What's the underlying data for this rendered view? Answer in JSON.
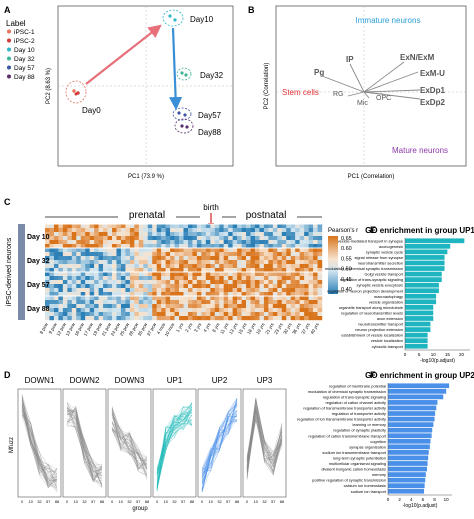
{
  "panel_letters": {
    "a": "A",
    "b": "B",
    "c": "C",
    "d": "D",
    "e": "E",
    "f": "F"
  },
  "panel_a": {
    "legend_title": "Label",
    "legend": [
      {
        "label": "iPSC-1",
        "color": "#e8735a"
      },
      {
        "label": "iPSC-2",
        "color": "#cf3a3a"
      },
      {
        "label": "Day 10",
        "color": "#2fb6c9"
      },
      {
        "label": "Day 32",
        "color": "#3cb59a"
      },
      {
        "label": "Day 57",
        "color": "#3b55a5"
      },
      {
        "label": "Day 88",
        "color": "#5a2f6b"
      }
    ],
    "xlabel": "PC1 (73.9 %)",
    "ylabel": "PC2 (8.63 %)",
    "points": {
      "day0": "Day0",
      "day10": "Day10",
      "day32": "Day32",
      "day57": "Day57",
      "day88": "Day88"
    }
  },
  "panel_b": {
    "xlabel": "PC1 (Correlation)",
    "ylabel": "PC2 (Correlation)",
    "top_label": "Immature neurons",
    "bottom_label": "Mature neurons",
    "left_label": "Stem cells",
    "vectors": [
      "IP",
      "Pg",
      "RG",
      "Mic",
      "OPC",
      "ExN/ExM",
      "ExM-U",
      "ExDp1",
      "ExDp2"
    ]
  },
  "panel_c": {
    "prenatal": "prenatal",
    "birth": "birth",
    "postnatal": "postnatal",
    "side_label": "iPSC-derived neurons",
    "rows": [
      "Day 10",
      "Day 32",
      "Day 57",
      "Day 88"
    ],
    "colorbar_title": "Pearson's r",
    "colorbar_ticks": [
      "0.65",
      "0.60",
      "0.55",
      "0.50",
      "0.45",
      "0.40"
    ],
    "xticks": [
      "8 pcw",
      "9 pcw",
      "12 pcw",
      "13 pcw",
      "16 pcw",
      "17 pcw",
      "19 pcw",
      "21 pcw",
      "24 pcw",
      "25 pcw",
      "26 pcw",
      "35 pcw",
      "37 pcw",
      "4 mos",
      "10 mos",
      "1 yrs",
      "2 yrs",
      "3 yrs",
      "4 yrs",
      "8 yrs",
      "11 yrs",
      "13 yrs",
      "15 yrs",
      "18 yrs",
      "19 yrs",
      "21 yrs",
      "23 yrs",
      "30 yrs",
      "36 yrs",
      "37 yrs",
      "40 yrs"
    ]
  },
  "panel_d": {
    "ylabel": "Mfuzz",
    "xlabel": "group",
    "clusters": [
      "DOWN1",
      "DOWN2",
      "DOWN3",
      "UP1",
      "UP2",
      "UP3"
    ],
    "xticks": [
      "0",
      "10",
      "32",
      "57",
      "88"
    ]
  },
  "chart_data": [
    {
      "type": "bar",
      "title": "GO enrichment in group UP1",
      "xlabel": "-log10(p.adjust)",
      "xticks": [
        "0",
        "5",
        "10",
        "15",
        "20"
      ],
      "xlim": [
        0,
        23
      ],
      "color": "#1fb5c0",
      "categories": [
        "vesicle-mediated transport in synapse",
        "axonogenesis",
        "synaptic vesicle cycle",
        "signal release from synapse",
        "neurotransmitter secretion",
        "modulation of chemical synaptic transmission",
        "Golgi vesicle transport",
        "regulation of trans-synaptic signaling",
        "synaptic vesicle exocytosis",
        "regulation of neuron projection development",
        "macroautophagy",
        "vesicle organization",
        "organelle transport along microtubule",
        "regulation of neurotransmitter levels",
        "axon extension",
        "neurotransmitter transport",
        "neuron projection extension",
        "establishment of vesicle localization",
        "vesicle localization",
        "cytosolic transport"
      ],
      "values": [
        21,
        16,
        15,
        14,
        14,
        14,
        13,
        13,
        12,
        12,
        11,
        11,
        10,
        10,
        10,
        9,
        9,
        8,
        8,
        8
      ]
    },
    {
      "type": "bar",
      "title": "GO enrichment in group UP2",
      "xlabel": "-log10(p.adjust)",
      "xticks": [
        "0",
        "2",
        "4",
        "6",
        "8",
        "10"
      ],
      "xlim": [
        0,
        11
      ],
      "color": "#4a8fe8",
      "categories": [
        "regulation of membrane potential",
        "modulation of chemical synaptic transmission",
        "regulation of trans-synaptic signaling",
        "regulation of cation channel activity",
        "regulation of transmembrane transporter activity",
        "regulation of transporter activity",
        "regulation of ion transmembrane transporter activity",
        "learning or memory",
        "regulation of synaptic plasticity",
        "regulation of cation transmembrane transport",
        "cognition",
        "synapse organization",
        "sodium ion transmembrane transport",
        "long-term synaptic potentiation",
        "multicellular organismal signaling",
        "divalent inorganic cation homeostasis",
        "memory",
        "positive regulation of synaptic transmission",
        "calcium ion homeostasis",
        "sodium ion transport"
      ],
      "values": [
        10.5,
        10,
        9.5,
        8.5,
        8.3,
        8.1,
        8,
        7.8,
        7.6,
        7.5,
        7.3,
        7.2,
        7,
        6.9,
        6.8,
        6.7,
        6.5,
        6.4,
        6.3,
        6.2
      ]
    }
  ]
}
